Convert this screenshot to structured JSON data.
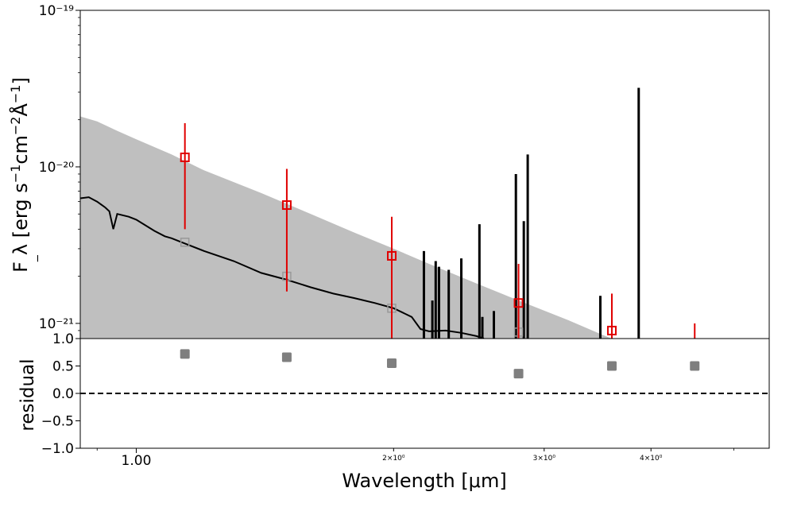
{
  "chart_data": [
    {
      "type": "line",
      "panel": "sed",
      "xscale": "log",
      "yscale": "log",
      "xlim": [
        0.86,
        5.5
      ],
      "ylim": [
        8e-22,
        1e-19
      ],
      "ylabel": "F_λ [erg s⁻¹cm⁻²Å⁻¹]",
      "yticks": [
        {
          "value": 1e-21,
          "label": "10⁻²¹"
        },
        {
          "value": 1e-20,
          "label": "10⁻²⁰"
        },
        {
          "value": 1e-19,
          "label": "10⁻¹⁹"
        }
      ],
      "colors": {
        "band": "#bfbfbf",
        "model": "#000000",
        "observed": "#e00000",
        "synthetic": "#999999"
      },
      "band_upper": [
        [
          0.86,
          2.1e-20
        ],
        [
          0.9,
          1.95e-20
        ],
        [
          0.95,
          1.7e-20
        ],
        [
          1.0,
          1.5e-20
        ],
        [
          1.1,
          1.2e-20
        ],
        [
          1.2,
          9.5e-21
        ],
        [
          1.4,
          6.8e-21
        ],
        [
          1.6,
          5e-21
        ],
        [
          1.8,
          3.8e-21
        ],
        [
          2.0,
          3e-21
        ],
        [
          2.2,
          2.4e-21
        ],
        [
          2.5,
          1.8e-21
        ],
        [
          2.8,
          1.4e-21
        ],
        [
          3.2,
          1.05e-21
        ],
        [
          3.5,
          8.5e-22
        ],
        [
          3.6,
          8e-22
        ]
      ],
      "model_sed": [
        [
          0.86,
          6.3e-21
        ],
        [
          0.88,
          6.4e-21
        ],
        [
          0.9,
          6e-21
        ],
        [
          0.92,
          5.5e-21
        ],
        [
          0.93,
          5.2e-21
        ],
        [
          0.94,
          4e-21
        ],
        [
          0.95,
          5e-21
        ],
        [
          0.98,
          4.8e-21
        ],
        [
          1.0,
          4.6e-21
        ],
        [
          1.05,
          3.9e-21
        ],
        [
          1.08,
          3.6e-21
        ],
        [
          1.1,
          3.5e-21
        ],
        [
          1.13,
          3.3e-21
        ],
        [
          1.2,
          2.9e-21
        ],
        [
          1.3,
          2.5e-21
        ],
        [
          1.4,
          2.1e-21
        ],
        [
          1.5,
          1.9e-21
        ],
        [
          1.6,
          1.7e-21
        ],
        [
          1.7,
          1.55e-21
        ],
        [
          1.8,
          1.45e-21
        ],
        [
          1.9,
          1.35e-21
        ],
        [
          2.0,
          1.25e-21
        ],
        [
          2.1,
          1.1e-21
        ],
        [
          2.15,
          9.2e-22
        ],
        [
          2.2,
          8.9e-22
        ],
        [
          2.3,
          9e-22
        ],
        [
          2.4,
          8.7e-22
        ],
        [
          2.5,
          8.3e-22
        ],
        [
          2.55,
          8e-22
        ]
      ],
      "emission_lines": [
        [
          2.17,
          2.9e-21
        ],
        [
          2.22,
          1.4e-21
        ],
        [
          2.24,
          2.5e-21
        ],
        [
          2.26,
          2.3e-21
        ],
        [
          2.32,
          2.2e-21
        ],
        [
          2.4,
          2.6e-21
        ],
        [
          2.52,
          4.3e-21
        ],
        [
          2.54,
          1.1e-21
        ],
        [
          2.62,
          1.2e-21
        ],
        [
          2.78,
          9e-21
        ],
        [
          2.84,
          4.5e-21
        ],
        [
          2.87,
          1.2e-20
        ],
        [
          3.49,
          1.5e-21
        ],
        [
          3.87,
          3.2e-20
        ]
      ],
      "observed": [
        {
          "x": 1.14,
          "y": 1.15e-20,
          "yerr_low": 4e-21,
          "yerr_high": 1.9e-20
        },
        {
          "x": 1.5,
          "y": 5.7e-21,
          "yerr_low": 1.6e-21,
          "yerr_high": 9.7e-21
        },
        {
          "x": 1.99,
          "y": 2.7e-21,
          "yerr_low": 8e-22,
          "yerr_high": 4.8e-21
        },
        {
          "x": 2.8,
          "y": 1.35e-21,
          "yerr_low": 8e-22,
          "yerr_high": 2.4e-21
        },
        {
          "x": 3.6,
          "y": 9e-22,
          "yerr_low": 8e-22,
          "yerr_high": 1.55e-21
        },
        {
          "x": 4.5,
          "y": 7e-22,
          "yerr_low": 8e-22,
          "yerr_high": 1e-21
        }
      ],
      "synthetic": [
        {
          "x": 1.14,
          "y": 3.3e-21
        },
        {
          "x": 1.5,
          "y": 2e-21
        },
        {
          "x": 1.99,
          "y": 1.25e-21
        },
        {
          "x": 2.8,
          "y": 8.8e-22
        }
      ]
    },
    {
      "type": "scatter",
      "panel": "residual",
      "xscale": "log",
      "xlim": [
        0.86,
        5.5
      ],
      "ylim": [
        -1.0,
        1.0
      ],
      "xlabel": "Wavelength [μm]",
      "ylabel": "residual",
      "yticks": [
        {
          "value": 1.0,
          "label": "1.0"
        },
        {
          "value": 0.5,
          "label": "0.5"
        },
        {
          "value": 0.0,
          "label": "0.0"
        },
        {
          "value": -0.5,
          "label": "−0.5"
        },
        {
          "value": -1.0,
          "label": "−1.0"
        }
      ],
      "xticks": [
        {
          "value": 1.0,
          "label": "1.00",
          "size": "large"
        },
        {
          "value": 2.0,
          "label": "2×10⁰",
          "size": "small"
        },
        {
          "value": 3.0,
          "label": "3×10⁰",
          "size": "small"
        },
        {
          "value": 4.0,
          "label": "4×10⁰",
          "size": "small"
        }
      ],
      "zero_line": 0.0,
      "marker_color": "#7f7f7f",
      "points": [
        {
          "x": 1.14,
          "y": 0.72
        },
        {
          "x": 1.5,
          "y": 0.66
        },
        {
          "x": 1.99,
          "y": 0.55
        },
        {
          "x": 2.8,
          "y": 0.36
        },
        {
          "x": 3.6,
          "y": 0.5
        },
        {
          "x": 4.5,
          "y": 0.5
        }
      ]
    }
  ]
}
